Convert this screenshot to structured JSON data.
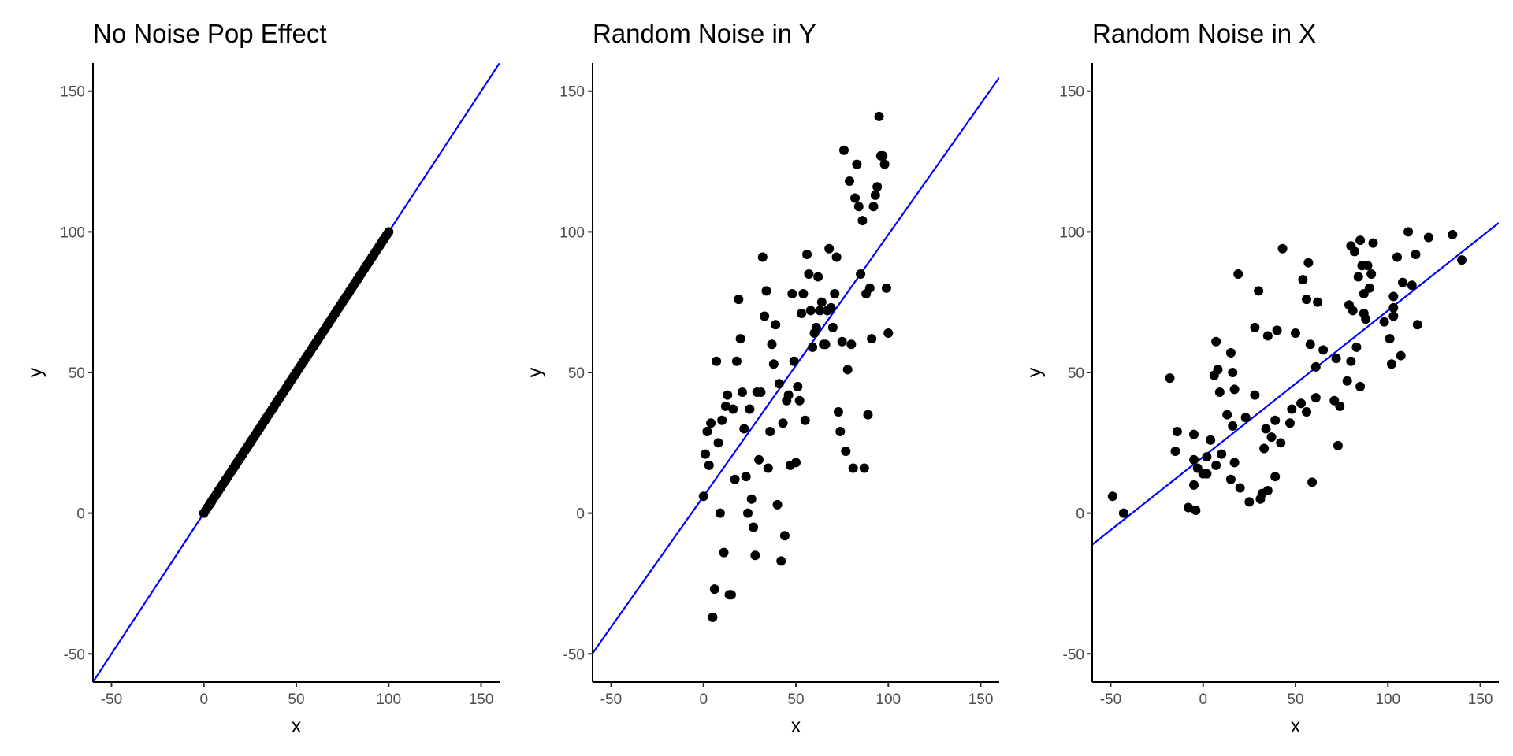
{
  "chart_data": [
    {
      "type": "scatter",
      "title": "No Noise Pop Effect",
      "xlabel": "x",
      "ylabel": "y",
      "xlim": [
        -60,
        160
      ],
      "ylim": [
        -60,
        160
      ],
      "xticks": [
        "-50",
        "0",
        "50",
        "100",
        "150"
      ],
      "yticks": [
        "-50",
        "0",
        "50",
        "100",
        "150"
      ],
      "fit_line": {
        "intercept": 0,
        "slope": 1,
        "color": "#0000ff"
      },
      "points_rule": "y = x for x = 0..100",
      "points": [
        [
          0,
          0
        ],
        [
          1,
          1
        ],
        [
          2,
          2
        ],
        [
          3,
          3
        ],
        [
          4,
          4
        ],
        [
          5,
          5
        ],
        [
          6,
          6
        ],
        [
          7,
          7
        ],
        [
          8,
          8
        ],
        [
          9,
          9
        ],
        [
          10,
          10
        ],
        [
          11,
          11
        ],
        [
          12,
          12
        ],
        [
          13,
          13
        ],
        [
          14,
          14
        ],
        [
          15,
          15
        ],
        [
          16,
          16
        ],
        [
          17,
          17
        ],
        [
          18,
          18
        ],
        [
          19,
          19
        ],
        [
          20,
          20
        ],
        [
          21,
          21
        ],
        [
          22,
          22
        ],
        [
          23,
          23
        ],
        [
          24,
          24
        ],
        [
          25,
          25
        ],
        [
          26,
          26
        ],
        [
          27,
          27
        ],
        [
          28,
          28
        ],
        [
          29,
          29
        ],
        [
          30,
          30
        ],
        [
          31,
          31
        ],
        [
          32,
          32
        ],
        [
          33,
          33
        ],
        [
          34,
          34
        ],
        [
          35,
          35
        ],
        [
          36,
          36
        ],
        [
          37,
          37
        ],
        [
          38,
          38
        ],
        [
          39,
          39
        ],
        [
          40,
          40
        ],
        [
          41,
          41
        ],
        [
          42,
          42
        ],
        [
          43,
          43
        ],
        [
          44,
          44
        ],
        [
          45,
          45
        ],
        [
          46,
          46
        ],
        [
          47,
          47
        ],
        [
          48,
          48
        ],
        [
          49,
          49
        ],
        [
          50,
          50
        ],
        [
          51,
          51
        ],
        [
          52,
          52
        ],
        [
          53,
          53
        ],
        [
          54,
          54
        ],
        [
          55,
          55
        ],
        [
          56,
          56
        ],
        [
          57,
          57
        ],
        [
          58,
          58
        ],
        [
          59,
          59
        ],
        [
          60,
          60
        ],
        [
          61,
          61
        ],
        [
          62,
          62
        ],
        [
          63,
          63
        ],
        [
          64,
          64
        ],
        [
          65,
          65
        ],
        [
          66,
          66
        ],
        [
          67,
          67
        ],
        [
          68,
          68
        ],
        [
          69,
          69
        ],
        [
          70,
          70
        ],
        [
          71,
          71
        ],
        [
          72,
          72
        ],
        [
          73,
          73
        ],
        [
          74,
          74
        ],
        [
          75,
          75
        ],
        [
          76,
          76
        ],
        [
          77,
          77
        ],
        [
          78,
          78
        ],
        [
          79,
          79
        ],
        [
          80,
          80
        ],
        [
          81,
          81
        ],
        [
          82,
          82
        ],
        [
          83,
          83
        ],
        [
          84,
          84
        ],
        [
          85,
          85
        ],
        [
          86,
          86
        ],
        [
          87,
          87
        ],
        [
          88,
          88
        ],
        [
          89,
          89
        ],
        [
          90,
          90
        ],
        [
          91,
          91
        ],
        [
          92,
          92
        ],
        [
          93,
          93
        ],
        [
          94,
          94
        ],
        [
          95,
          95
        ],
        [
          96,
          96
        ],
        [
          97,
          97
        ],
        [
          98,
          98
        ],
        [
          99,
          99
        ],
        [
          100,
          100
        ]
      ],
      "point_color": "#000000"
    },
    {
      "type": "scatter",
      "title": "Random Noise in Y",
      "xlabel": "x",
      "ylabel": "y",
      "xlim": [
        -60,
        160
      ],
      "ylim": [
        -60,
        160
      ],
      "xticks": [
        "-50",
        "0",
        "50",
        "100",
        "150"
      ],
      "yticks": [
        "-50",
        "0",
        "50",
        "100",
        "150"
      ],
      "fit_line": {
        "intercept": 6,
        "slope": 0.93,
        "color": "#0000ff"
      },
      "points": [
        [
          0,
          6
        ],
        [
          1,
          21
        ],
        [
          2,
          29
        ],
        [
          3,
          17
        ],
        [
          4,
          32
        ],
        [
          5,
          -37
        ],
        [
          6,
          -27
        ],
        [
          7,
          54
        ],
        [
          8,
          25
        ],
        [
          9,
          0
        ],
        [
          10,
          33
        ],
        [
          11,
          -14
        ],
        [
          12,
          38
        ],
        [
          13,
          42
        ],
        [
          14,
          -29
        ],
        [
          15,
          -29
        ],
        [
          16,
          37
        ],
        [
          17,
          12
        ],
        [
          18,
          54
        ],
        [
          19,
          76
        ],
        [
          20,
          62
        ],
        [
          21,
          43
        ],
        [
          22,
          30
        ],
        [
          23,
          13
        ],
        [
          24,
          0
        ],
        [
          25,
          37
        ],
        [
          26,
          5
        ],
        [
          27,
          -5
        ],
        [
          28,
          -15
        ],
        [
          29,
          43
        ],
        [
          30,
          19
        ],
        [
          31,
          43
        ],
        [
          32,
          91
        ],
        [
          33,
          70
        ],
        [
          34,
          79
        ],
        [
          35,
          16
        ],
        [
          36,
          29
        ],
        [
          37,
          60
        ],
        [
          38,
          53
        ],
        [
          39,
          67
        ],
        [
          40,
          3
        ],
        [
          41,
          46
        ],
        [
          42,
          -17
        ],
        [
          43,
          32
        ],
        [
          44,
          -8
        ],
        [
          45,
          40
        ],
        [
          46,
          42
        ],
        [
          47,
          17
        ],
        [
          48,
          78
        ],
        [
          49,
          54
        ],
        [
          50,
          18
        ],
        [
          51,
          45
        ],
        [
          52,
          40
        ],
        [
          53,
          71
        ],
        [
          54,
          78
        ],
        [
          55,
          33
        ],
        [
          56,
          92
        ],
        [
          57,
          85
        ],
        [
          58,
          72
        ],
        [
          59,
          59
        ],
        [
          60,
          64
        ],
        [
          61,
          66
        ],
        [
          62,
          84
        ],
        [
          63,
          72
        ],
        [
          64,
          75
        ],
        [
          65,
          60
        ],
        [
          66,
          60
        ],
        [
          67,
          72
        ],
        [
          68,
          94
        ],
        [
          69,
          73
        ],
        [
          70,
          66
        ],
        [
          71,
          78
        ],
        [
          72,
          91
        ],
        [
          73,
          36
        ],
        [
          74,
          29
        ],
        [
          75,
          61
        ],
        [
          76,
          129
        ],
        [
          77,
          22
        ],
        [
          78,
          51
        ],
        [
          79,
          118
        ],
        [
          80,
          60
        ],
        [
          81,
          16
        ],
        [
          82,
          112
        ],
        [
          83,
          124
        ],
        [
          84,
          109
        ],
        [
          85,
          85
        ],
        [
          86,
          104
        ],
        [
          87,
          16
        ],
        [
          88,
          78
        ],
        [
          89,
          35
        ],
        [
          90,
          80
        ],
        [
          91,
          62
        ],
        [
          92,
          109
        ],
        [
          93,
          113
        ],
        [
          94,
          116
        ],
        [
          95,
          141
        ],
        [
          96,
          127
        ],
        [
          97,
          127
        ],
        [
          98,
          124
        ],
        [
          99,
          80
        ],
        [
          100,
          64
        ]
      ],
      "point_color": "#000000"
    },
    {
      "type": "scatter",
      "title": "Random Noise in X",
      "xlabel": "x",
      "ylabel": "y",
      "xlim": [
        -60,
        160
      ],
      "ylim": [
        -60,
        160
      ],
      "xticks": [
        "-50",
        "0",
        "50",
        "100",
        "150"
      ],
      "yticks": [
        "-50",
        "0",
        "50",
        "100",
        "150"
      ],
      "fit_line": {
        "intercept": 20,
        "slope": 0.52,
        "color": "#0000ff"
      },
      "points": [
        [
          -49,
          6
        ],
        [
          -43,
          0
        ],
        [
          -18,
          48
        ],
        [
          -15,
          22
        ],
        [
          -14,
          29
        ],
        [
          -8,
          2
        ],
        [
          -5,
          28
        ],
        [
          -5,
          10
        ],
        [
          -5,
          19
        ],
        [
          -4,
          1
        ],
        [
          -3,
          16
        ],
        [
          0,
          14
        ],
        [
          2,
          20
        ],
        [
          2,
          14
        ],
        [
          4,
          26
        ],
        [
          6,
          49
        ],
        [
          7,
          17
        ],
        [
          7,
          61
        ],
        [
          8,
          51
        ],
        [
          9,
          43
        ],
        [
          10,
          21
        ],
        [
          13,
          35
        ],
        [
          15,
          12
        ],
        [
          15,
          57
        ],
        [
          16,
          50
        ],
        [
          16,
          31
        ],
        [
          17,
          44
        ],
        [
          17,
          18
        ],
        [
          19,
          85
        ],
        [
          20,
          9
        ],
        [
          23,
          34
        ],
        [
          25,
          4
        ],
        [
          28,
          66
        ],
        [
          28,
          42
        ],
        [
          30,
          79
        ],
        [
          31,
          5
        ],
        [
          32,
          7
        ],
        [
          33,
          23
        ],
        [
          34,
          30
        ],
        [
          35,
          63
        ],
        [
          35,
          8
        ],
        [
          37,
          27
        ],
        [
          39,
          33
        ],
        [
          39,
          13
        ],
        [
          40,
          65
        ],
        [
          42,
          25
        ],
        [
          43,
          94
        ],
        [
          47,
          32
        ],
        [
          48,
          37
        ],
        [
          50,
          64
        ],
        [
          53,
          39
        ],
        [
          54,
          83
        ],
        [
          56,
          36
        ],
        [
          56,
          76
        ],
        [
          57,
          89
        ],
        [
          58,
          60
        ],
        [
          59,
          11
        ],
        [
          61,
          41
        ],
        [
          61,
          52
        ],
        [
          62,
          75
        ],
        [
          65,
          58
        ],
        [
          71,
          40
        ],
        [
          72,
          55
        ],
        [
          73,
          24
        ],
        [
          74,
          38
        ],
        [
          78,
          47
        ],
        [
          79,
          74
        ],
        [
          80,
          54
        ],
        [
          80,
          95
        ],
        [
          81,
          72
        ],
        [
          82,
          93
        ],
        [
          83,
          59
        ],
        [
          84,
          84
        ],
        [
          85,
          45
        ],
        [
          85,
          97
        ],
        [
          86,
          88
        ],
        [
          87,
          78
        ],
        [
          87,
          71
        ],
        [
          88,
          69
        ],
        [
          89,
          88
        ],
        [
          90,
          80
        ],
        [
          91,
          85
        ],
        [
          92,
          96
        ],
        [
          98,
          68
        ],
        [
          101,
          62
        ],
        [
          102,
          53
        ],
        [
          103,
          73
        ],
        [
          103,
          77
        ],
        [
          103,
          70
        ],
        [
          105,
          91
        ],
        [
          107,
          56
        ],
        [
          108,
          82
        ],
        [
          111,
          100
        ],
        [
          113,
          81
        ],
        [
          115,
          92
        ],
        [
          116,
          67
        ],
        [
          122,
          98
        ],
        [
          135,
          99
        ],
        [
          140,
          90
        ]
      ],
      "point_color": "#000000"
    }
  ]
}
